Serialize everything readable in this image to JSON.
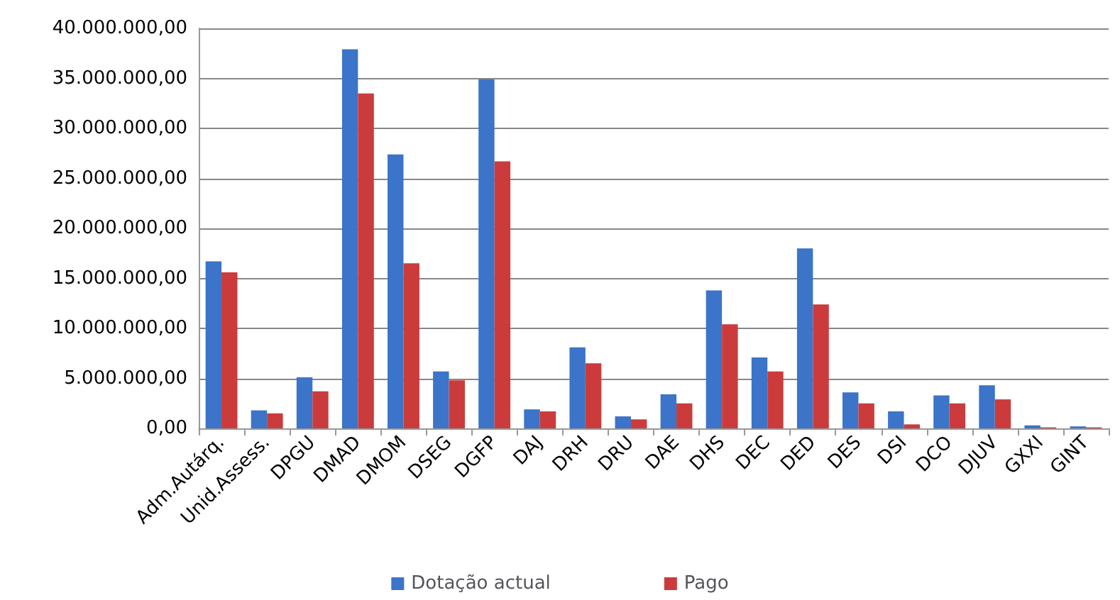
{
  "chart_data": {
    "type": "bar",
    "categories": [
      "Adm.Autárq.",
      "Unid.Assess.",
      "DPGU",
      "DMAD",
      "DMOM",
      "DSEG",
      "DGFP",
      "DAJ",
      "DRH",
      "DRU",
      "DAE",
      "DHS",
      "DEC",
      "DED",
      "DES",
      "DSI",
      "DCO",
      "DJUV",
      "GXXI",
      "GINT"
    ],
    "series": [
      {
        "name": "Dotação actual",
        "color": "#3b74c8",
        "values": [
          16700000,
          1800000,
          5100000,
          37900000,
          27400000,
          5700000,
          34900000,
          1900000,
          8100000,
          1200000,
          3400000,
          13800000,
          7100000,
          18000000,
          3600000,
          1700000,
          3300000,
          4300000,
          300000,
          200000
        ]
      },
      {
        "name": "Pago",
        "color": "#cc3b3b",
        "values": [
          15600000,
          1500000,
          3700000,
          33500000,
          16500000,
          4800000,
          26700000,
          1700000,
          6500000,
          900000,
          2500000,
          10400000,
          5700000,
          12400000,
          2500000,
          400000,
          2500000,
          2900000,
          100000,
          100000
        ]
      }
    ],
    "ylim": [
      0,
      40000000
    ],
    "yticks": [
      {
        "value": 0,
        "label": "0,00"
      },
      {
        "value": 5000000,
        "label": "5.000.000,00"
      },
      {
        "value": 10000000,
        "label": "10.000.000,00"
      },
      {
        "value": 15000000,
        "label": "15.000.000,00"
      },
      {
        "value": 20000000,
        "label": "20.000.000,00"
      },
      {
        "value": 25000000,
        "label": "25.000.000,00"
      },
      {
        "value": 30000000,
        "label": "30.000.000,00"
      },
      {
        "value": 35000000,
        "label": "35.000.000,00"
      },
      {
        "value": 40000000,
        "label": "40.000.000,00"
      }
    ],
    "grid": "y",
    "legend": "bottom"
  }
}
